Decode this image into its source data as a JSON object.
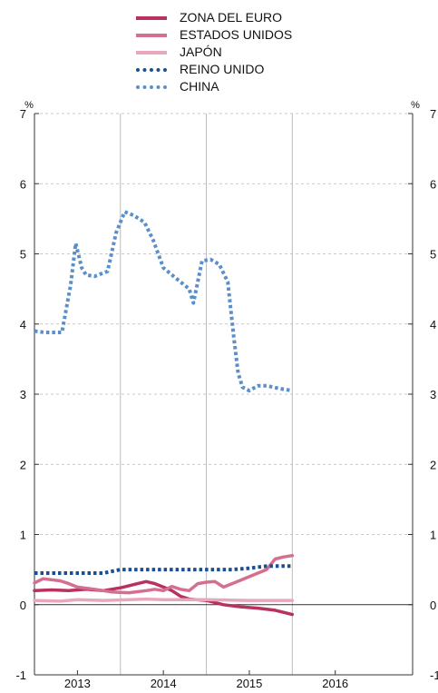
{
  "chart_data": {
    "type": "line",
    "y_unit_left": "%",
    "y_unit_right": "%",
    "ylim": [
      -1,
      7
    ],
    "yticks": [
      "-1",
      "0",
      "1",
      "2",
      "3",
      "4",
      "5",
      "6",
      "7"
    ],
    "xlim": [
      2012.5,
      2016.9
    ],
    "xticks": [
      {
        "label": "2013",
        "value": 2013.0
      },
      {
        "label": "2014",
        "value": 2014.0
      },
      {
        "label": "2015",
        "value": 2015.0
      },
      {
        "label": "2016",
        "value": 2016.0
      }
    ],
    "vertical_gridlines_at": [
      2013.5,
      2014.5,
      2015.5
    ],
    "legend_position": "top",
    "series": [
      {
        "name": "ZONA DEL EURO",
        "color": "#b8325f",
        "style": "solid",
        "x": [
          2012.5,
          2012.7,
          2012.9,
          2013.1,
          2013.3,
          2013.5,
          2013.6,
          2013.7,
          2013.8,
          2013.9,
          2014.0,
          2014.1,
          2014.2,
          2014.3,
          2014.5,
          2014.7,
          2014.9,
          2015.1,
          2015.3,
          2015.5
        ],
        "y": [
          0.2,
          0.21,
          0.2,
          0.22,
          0.2,
          0.24,
          0.27,
          0.3,
          0.33,
          0.3,
          0.25,
          0.2,
          0.12,
          0.08,
          0.06,
          0.0,
          -0.03,
          -0.05,
          -0.08,
          -0.14
        ]
      },
      {
        "name": "ESTADOS UNIDOS",
        "color": "#d4708f",
        "style": "solid",
        "x": [
          2012.5,
          2012.6,
          2012.8,
          2012.9,
          2013.0,
          2013.2,
          2013.4,
          2013.6,
          2013.8,
          2013.9,
          2014.0,
          2014.1,
          2014.2,
          2014.3,
          2014.4,
          2014.5,
          2014.6,
          2014.7,
          2014.8,
          2014.9,
          2015.0,
          2015.2,
          2015.3,
          2015.4,
          2015.5
        ],
        "y": [
          0.31,
          0.37,
          0.34,
          0.3,
          0.25,
          0.22,
          0.18,
          0.17,
          0.2,
          0.22,
          0.2,
          0.26,
          0.22,
          0.2,
          0.3,
          0.32,
          0.33,
          0.25,
          0.3,
          0.35,
          0.4,
          0.5,
          0.65,
          0.68,
          0.7
        ]
      },
      {
        "name": "JAPÓN",
        "color": "#e8a8bc",
        "style": "solid",
        "x": [
          2012.5,
          2012.8,
          2013.0,
          2013.3,
          2013.6,
          2013.8,
          2014.0,
          2014.5,
          2015.0,
          2015.5
        ],
        "y": [
          0.06,
          0.05,
          0.07,
          0.06,
          0.07,
          0.08,
          0.07,
          0.07,
          0.06,
          0.06
        ]
      },
      {
        "name": "REINO UNIDO",
        "color": "#1a4f91",
        "style": "dotted",
        "x": [
          2012.5,
          2013.0,
          2013.3,
          2013.5,
          2014.0,
          2014.5,
          2014.8,
          2015.0,
          2015.2,
          2015.5
        ],
        "y": [
          0.45,
          0.45,
          0.45,
          0.5,
          0.5,
          0.5,
          0.5,
          0.52,
          0.55,
          0.55
        ]
      },
      {
        "name": "CHINA",
        "color": "#5b8fc9",
        "style": "dotted",
        "x": [
          2012.5,
          2012.62,
          2012.82,
          2012.92,
          2012.98,
          2013.05,
          2013.1,
          2013.2,
          2013.35,
          2013.45,
          2013.55,
          2013.65,
          2013.78,
          2013.88,
          2014.0,
          2014.1,
          2014.2,
          2014.3,
          2014.35,
          2014.45,
          2014.55,
          2014.65,
          2014.75,
          2014.82,
          2014.87,
          2014.92,
          2015.0,
          2015.1,
          2015.2,
          2015.35,
          2015.5
        ],
        "y": [
          3.9,
          3.88,
          3.88,
          4.55,
          5.15,
          4.8,
          4.7,
          4.68,
          4.75,
          5.3,
          5.6,
          5.55,
          5.45,
          5.2,
          4.8,
          4.7,
          4.6,
          4.5,
          4.3,
          4.9,
          4.92,
          4.85,
          4.6,
          3.8,
          3.3,
          3.1,
          3.05,
          3.12,
          3.12,
          3.08,
          3.05
        ]
      }
    ]
  }
}
